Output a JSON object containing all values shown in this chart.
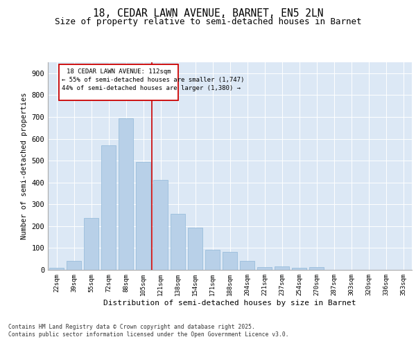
{
  "title": "18, CEDAR LAWN AVENUE, BARNET, EN5 2LN",
  "subtitle": "Size of property relative to semi-detached houses in Barnet",
  "xlabel": "Distribution of semi-detached houses by size in Barnet",
  "ylabel": "Number of semi-detached properties",
  "categories": [
    "22sqm",
    "39sqm",
    "55sqm",
    "72sqm",
    "88sqm",
    "105sqm",
    "121sqm",
    "138sqm",
    "154sqm",
    "171sqm",
    "188sqm",
    "204sqm",
    "221sqm",
    "237sqm",
    "254sqm",
    "270sqm",
    "287sqm",
    "303sqm",
    "320sqm",
    "336sqm",
    "353sqm"
  ],
  "values": [
    8,
    42,
    237,
    570,
    693,
    493,
    412,
    258,
    192,
    93,
    83,
    40,
    14,
    16,
    9,
    12,
    1,
    0,
    0,
    0,
    0
  ],
  "bar_color": "#b8d0e8",
  "bar_edge_color": "#90b8d8",
  "vline_position": 5.5,
  "vline_color": "#cc0000",
  "annotation_title": "18 CEDAR LAWN AVENUE: 112sqm",
  "annotation_line1": "← 55% of semi-detached houses are smaller (1,747)",
  "annotation_line2": "44% of semi-detached houses are larger (1,380) →",
  "annotation_box_color": "#ffffff",
  "annotation_box_edgecolor": "#cc0000",
  "ylim": [
    0,
    950
  ],
  "yticks": [
    0,
    100,
    200,
    300,
    400,
    500,
    600,
    700,
    800,
    900
  ],
  "background_color": "#dce8f5",
  "footer_line1": "Contains HM Land Registry data © Crown copyright and database right 2025.",
  "footer_line2": "Contains public sector information licensed under the Open Government Licence v3.0.",
  "title_fontsize": 10.5,
  "subtitle_fontsize": 9
}
